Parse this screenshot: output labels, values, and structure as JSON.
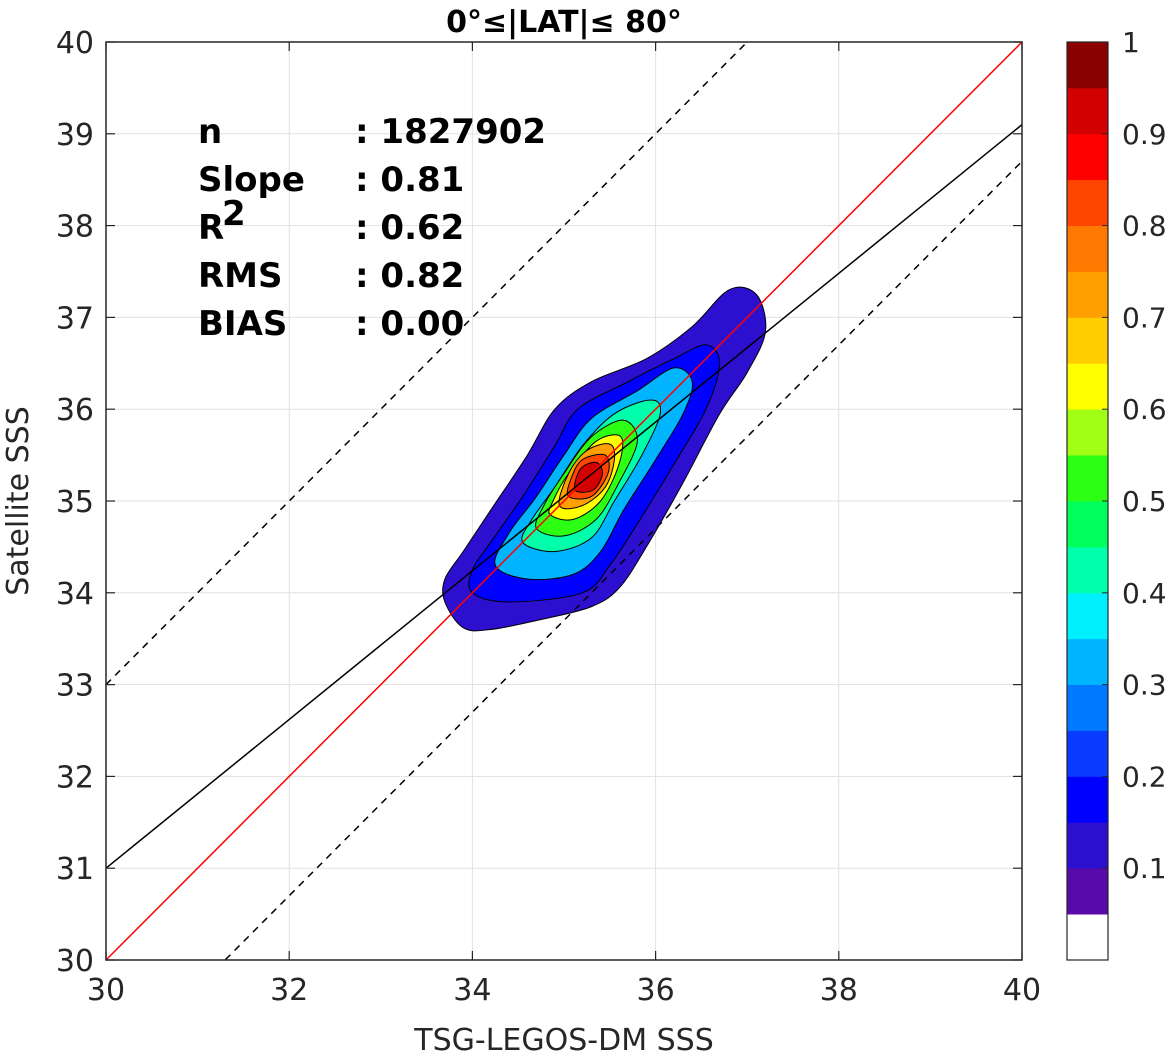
{
  "chart_data": {
    "type": "contour",
    "title": "0°≤|LAT|≤ 80°",
    "xlabel": "TSG-LEGOS-DM SSS",
    "ylabel": "Satellite SSS",
    "xlim": [
      30,
      40
    ],
    "ylim": [
      30,
      40
    ],
    "xticks": [
      "30",
      "32",
      "34",
      "36",
      "38",
      "40"
    ],
    "yticks": [
      "30",
      "31",
      "32",
      "33",
      "34",
      "35",
      "36",
      "37",
      "38",
      "39",
      "40"
    ],
    "grid": true,
    "density_peak": {
      "x": 35.3,
      "y": 35.25
    },
    "lines": [
      {
        "name": "1:1",
        "color": "#ff0000",
        "style": "solid",
        "slope": 1.0,
        "intercept": 0.0
      },
      {
        "name": "fit",
        "color": "#000000",
        "style": "solid",
        "slope": 0.81,
        "intercept": 6.7
      },
      {
        "name": "upper",
        "color": "#000000",
        "style": "dashed",
        "slope": 1.0,
        "intercept": 3.0
      },
      {
        "name": "lower",
        "color": "#000000",
        "style": "dashed",
        "slope": 1.0,
        "intercept": -1.3
      }
    ],
    "stats": [
      {
        "label": "n",
        "sup": "",
        "value": ": 1827902"
      },
      {
        "label": "Slope",
        "sup": "",
        "value": ": 0.81"
      },
      {
        "label": "R",
        "sup": "2",
        "value": ": 0.62"
      },
      {
        "label": "RMS",
        "sup": "",
        "value": ": 0.82"
      },
      {
        "label": "BIAS",
        "sup": "",
        "value": ": 0.00"
      }
    ],
    "colorbar": {
      "range": [
        0,
        1
      ],
      "ticks": [
        "0.1",
        "0.2",
        "0.3",
        "0.4",
        "0.5",
        "0.6",
        "0.7",
        "0.8",
        "0.9",
        "1"
      ],
      "tick_values": [
        0.1,
        0.2,
        0.3,
        0.4,
        0.5,
        0.6,
        0.7,
        0.8,
        0.9,
        1.0
      ],
      "levels": [
        {
          "from": 0.0,
          "to": 0.05,
          "color": "#ffffff"
        },
        {
          "from": 0.05,
          "to": 0.1,
          "color": "#5a0aa8"
        },
        {
          "from": 0.1,
          "to": 0.15,
          "color": "#2d0fd0"
        },
        {
          "from": 0.15,
          "to": 0.2,
          "color": "#0000ff"
        },
        {
          "from": 0.2,
          "to": 0.25,
          "color": "#0a3cff"
        },
        {
          "from": 0.25,
          "to": 0.3,
          "color": "#0078ff"
        },
        {
          "from": 0.3,
          "to": 0.35,
          "color": "#00b4ff"
        },
        {
          "from": 0.35,
          "to": 0.4,
          "color": "#00f0ff"
        },
        {
          "from": 0.4,
          "to": 0.45,
          "color": "#00ffaa"
        },
        {
          "from": 0.45,
          "to": 0.5,
          "color": "#00ff5a"
        },
        {
          "from": 0.5,
          "to": 0.55,
          "color": "#2dff14"
        },
        {
          "from": 0.55,
          "to": 0.6,
          "color": "#a0ff14"
        },
        {
          "from": 0.6,
          "to": 0.65,
          "color": "#ffff00"
        },
        {
          "from": 0.65,
          "to": 0.7,
          "color": "#ffcd00"
        },
        {
          "from": 0.7,
          "to": 0.75,
          "color": "#ff9f00"
        },
        {
          "from": 0.75,
          "to": 0.8,
          "color": "#ff7800"
        },
        {
          "from": 0.8,
          "to": 0.85,
          "color": "#ff4600"
        },
        {
          "from": 0.85,
          "to": 0.9,
          "color": "#ff0000"
        },
        {
          "from": 0.9,
          "to": 0.95,
          "color": "#d20000"
        },
        {
          "from": 0.95,
          "to": 1.0,
          "color": "#8b0000"
        }
      ]
    },
    "contours": [
      {
        "level": 0.05,
        "color": "#2d0fd0",
        "points": [
          [
            33.7,
            33.9
          ],
          [
            33.9,
            33.62
          ],
          [
            34.2,
            33.6
          ],
          [
            34.8,
            33.72
          ],
          [
            35.3,
            33.85
          ],
          [
            35.6,
            34.05
          ],
          [
            35.9,
            34.5
          ],
          [
            36.3,
            35.2
          ],
          [
            36.7,
            35.95
          ],
          [
            37.0,
            36.4
          ],
          [
            37.2,
            36.85
          ],
          [
            37.1,
            37.25
          ],
          [
            36.8,
            37.3
          ],
          [
            36.4,
            36.9
          ],
          [
            35.9,
            36.55
          ],
          [
            35.3,
            36.3
          ],
          [
            34.9,
            36.0
          ],
          [
            34.6,
            35.5
          ],
          [
            34.2,
            34.9
          ],
          [
            33.9,
            34.45
          ],
          [
            33.7,
            34.15
          ]
        ]
      },
      {
        "level": 0.1,
        "color": "#0000ff",
        "points": [
          [
            34.0,
            34.0
          ],
          [
            34.4,
            33.9
          ],
          [
            35.2,
            34.0
          ],
          [
            35.5,
            34.3
          ],
          [
            35.8,
            34.75
          ],
          [
            36.2,
            35.4
          ],
          [
            36.55,
            36.0
          ],
          [
            36.7,
            36.5
          ],
          [
            36.55,
            36.7
          ],
          [
            36.2,
            36.55
          ],
          [
            35.7,
            36.3
          ],
          [
            35.15,
            36.0
          ],
          [
            34.9,
            35.6
          ],
          [
            34.55,
            35.05
          ],
          [
            34.2,
            34.55
          ],
          [
            34.0,
            34.25
          ]
        ]
      },
      {
        "level": 0.2,
        "color": "#00b4ff",
        "points": [
          [
            34.25,
            34.3
          ],
          [
            34.6,
            34.15
          ],
          [
            35.1,
            34.2
          ],
          [
            35.4,
            34.45
          ],
          [
            35.65,
            34.9
          ],
          [
            36.0,
            35.45
          ],
          [
            36.3,
            35.95
          ],
          [
            36.4,
            36.3
          ],
          [
            36.2,
            36.45
          ],
          [
            35.8,
            36.2
          ],
          [
            35.3,
            35.9
          ],
          [
            35.0,
            35.5
          ],
          [
            34.7,
            35.05
          ],
          [
            34.4,
            34.65
          ]
        ]
      },
      {
        "level": 0.3,
        "color": "#00ffaa",
        "points": [
          [
            34.55,
            34.55
          ],
          [
            34.9,
            34.45
          ],
          [
            35.3,
            34.6
          ],
          [
            35.55,
            35.0
          ],
          [
            35.85,
            35.5
          ],
          [
            36.05,
            35.95
          ],
          [
            35.95,
            36.1
          ],
          [
            35.55,
            35.95
          ],
          [
            35.2,
            35.6
          ],
          [
            34.9,
            35.15
          ],
          [
            34.65,
            34.8
          ]
        ]
      },
      {
        "level": 0.4,
        "color": "#2dff14",
        "points": [
          [
            34.7,
            34.7
          ],
          [
            35.0,
            34.62
          ],
          [
            35.35,
            34.8
          ],
          [
            35.6,
            35.2
          ],
          [
            35.8,
            35.65
          ],
          [
            35.65,
            35.88
          ],
          [
            35.3,
            35.7
          ],
          [
            35.0,
            35.3
          ],
          [
            34.78,
            34.95
          ]
        ]
      },
      {
        "level": 0.5,
        "color": "#ffff00",
        "points": [
          [
            34.85,
            34.85
          ],
          [
            35.1,
            34.8
          ],
          [
            35.4,
            35.0
          ],
          [
            35.6,
            35.4
          ],
          [
            35.62,
            35.7
          ],
          [
            35.35,
            35.65
          ],
          [
            35.05,
            35.3
          ],
          [
            34.88,
            35.0
          ]
        ]
      },
      {
        "level": 0.6,
        "color": "#ff9f00",
        "points": [
          [
            34.95,
            34.95
          ],
          [
            35.2,
            34.95
          ],
          [
            35.45,
            35.15
          ],
          [
            35.55,
            35.45
          ],
          [
            35.5,
            35.62
          ],
          [
            35.25,
            35.55
          ],
          [
            35.05,
            35.3
          ]
        ]
      },
      {
        "level": 0.7,
        "color": "#ff4600",
        "points": [
          [
            35.05,
            35.05
          ],
          [
            35.3,
            35.05
          ],
          [
            35.48,
            35.3
          ],
          [
            35.45,
            35.5
          ],
          [
            35.2,
            35.45
          ],
          [
            35.08,
            35.25
          ]
        ]
      },
      {
        "level": 0.8,
        "color": "#d20000",
        "points": [
          [
            35.12,
            35.12
          ],
          [
            35.32,
            35.12
          ],
          [
            35.42,
            35.3
          ],
          [
            35.35,
            35.42
          ],
          [
            35.18,
            35.35
          ]
        ]
      }
    ]
  }
}
